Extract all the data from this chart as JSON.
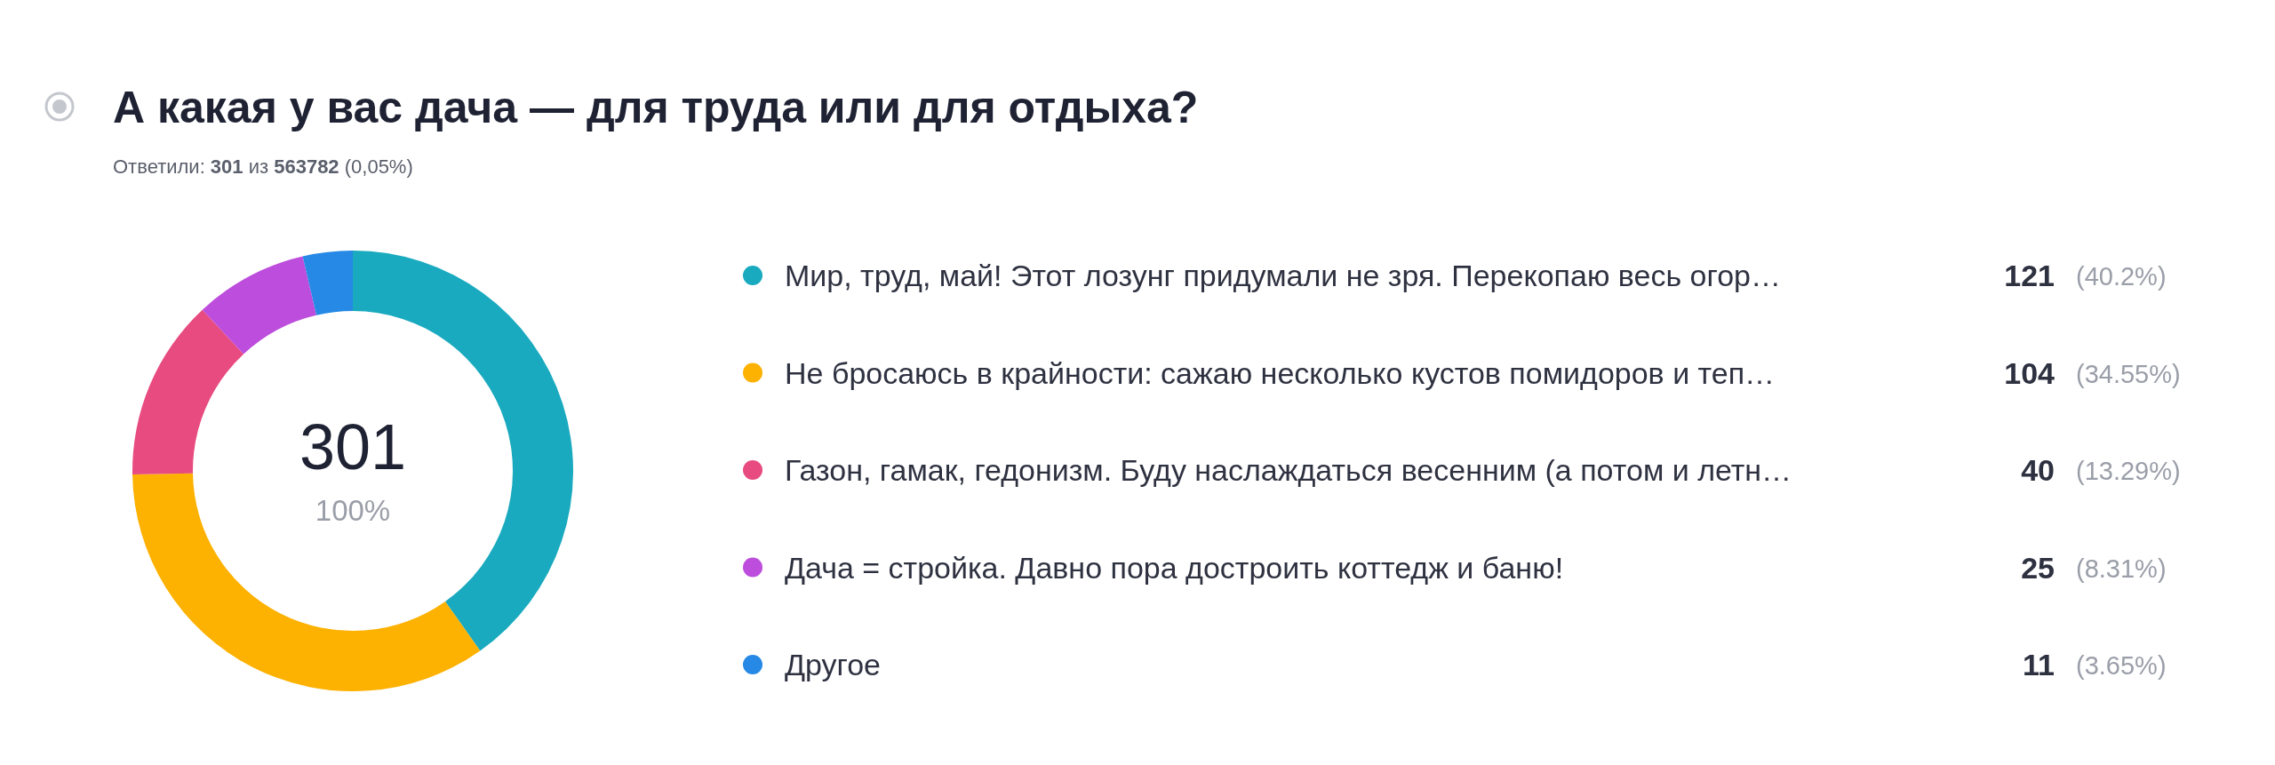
{
  "chart_data": {
    "type": "donut",
    "title": "А какая у вас дача — для труда или для отдыха?",
    "subtitle": "Ответили: 301 из 563782 (0,05%)",
    "categories": [
      "Мир, труд, май! Этот лозунг придумали не зря. Перекопаю весь огор…",
      "Не бросаюсь в крайности: сажаю несколько кустов помидоров и теп…",
      "Газон, гамак, гедонизм. Буду наслаждаться весенним (а потом и летн…",
      "Дача = стройка. Давно пора достроить коттедж и баню!",
      "Другое"
    ],
    "values": [
      121,
      104,
      40,
      25,
      11
    ],
    "colors": [
      "#19aabf",
      "#fdb100",
      "#e84b80",
      "#bd4ddc",
      "#2589e5"
    ],
    "data_labels": true,
    "legend": "right",
    "annotations": [
      "301",
      "100%",
      "(40.2%)",
      "(34.55%)",
      "(13.29%)",
      "(8.31%)",
      "(3.65%)"
    ]
  }
}
